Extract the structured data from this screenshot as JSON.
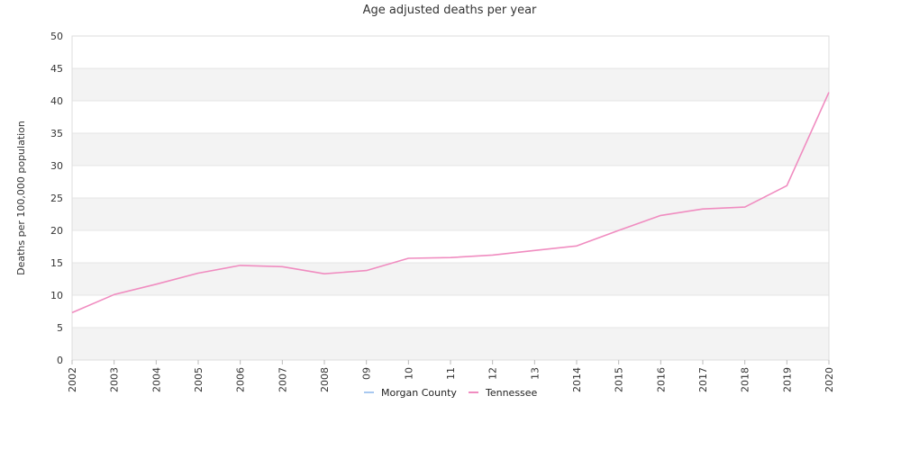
{
  "chart_data": {
    "type": "line",
    "title": "Age adjusted deaths per year",
    "xlabel": "",
    "ylabel": "Deaths per 100,000 population",
    "categories": [
      "2002",
      "2003",
      "2004",
      "2005",
      "2006",
      "2007",
      "2008",
      "09",
      "10",
      "11",
      "12",
      "13",
      "2014",
      "2015",
      "2016",
      "2017",
      "2018",
      "2019",
      "2020"
    ],
    "ylim": [
      0,
      50
    ],
    "yticks": [
      0,
      5,
      10,
      15,
      20,
      25,
      30,
      35,
      40,
      45,
      50
    ],
    "grid": "alternating horizontal bands",
    "legend_position": "bottom-center",
    "series": [
      {
        "name": "Morgan County",
        "color": "#a8c8f0",
        "values": [
          null,
          null,
          null,
          null,
          null,
          null,
          null,
          null,
          null,
          null,
          null,
          null,
          null,
          null,
          null,
          null,
          null,
          null,
          null
        ]
      },
      {
        "name": "Tennessee",
        "color": "#f08cc0",
        "values": [
          7.3,
          10.1,
          11.7,
          13.4,
          14.6,
          14.4,
          13.3,
          13.8,
          15.7,
          15.8,
          16.2,
          16.9,
          17.6,
          20.0,
          22.3,
          23.3,
          23.6,
          26.9,
          41.3
        ]
      }
    ]
  }
}
